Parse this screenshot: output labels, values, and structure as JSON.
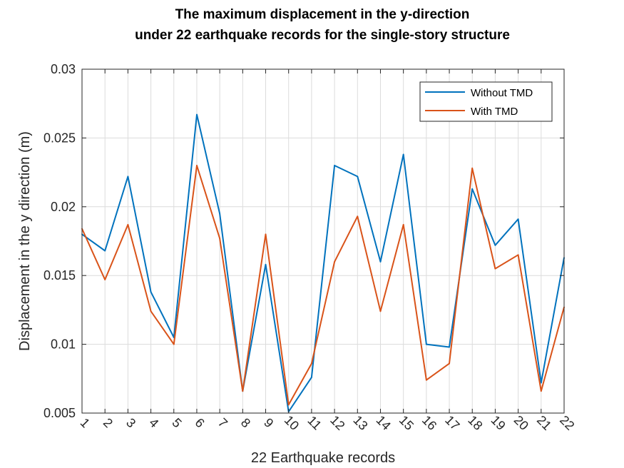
{
  "chart_data": {
    "type": "line",
    "title": [
      "The maximum displacement in the y-direction",
      "under 22 earthquake records for the single-story structure"
    ],
    "xlabel": "22 Earthquake records",
    "ylabel": "Displacement in the y direction (m)",
    "x": [
      1,
      2,
      3,
      4,
      5,
      6,
      7,
      8,
      9,
      10,
      11,
      12,
      13,
      14,
      15,
      16,
      17,
      18,
      19,
      20,
      21,
      22
    ],
    "xlim": [
      1,
      22
    ],
    "ylim": [
      0.005,
      0.03
    ],
    "yticks": [
      "0.005",
      "0.01",
      "0.015",
      "0.02",
      "0.025",
      "0.03"
    ],
    "ytick_values": [
      0.005,
      0.01,
      0.015,
      0.02,
      0.025,
      0.03
    ],
    "xticks": [
      "1",
      "2",
      "3",
      "4",
      "5",
      "6",
      "7",
      "8",
      "9",
      "10",
      "11",
      "12",
      "13",
      "14",
      "15",
      "16",
      "17",
      "18",
      "19",
      "20",
      "21",
      "22"
    ],
    "grid": true,
    "legend_position": "top-right",
    "series": [
      {
        "name": "Without TMD",
        "color": "#0072BD",
        "values": [
          0.018,
          0.0168,
          0.0222,
          0.0138,
          0.0105,
          0.0267,
          0.0195,
          0.0066,
          0.0158,
          0.0051,
          0.0076,
          0.023,
          0.0222,
          0.016,
          0.0238,
          0.01,
          0.0098,
          0.0213,
          0.0172,
          0.0191,
          0.0072,
          0.0163
        ]
      },
      {
        "name": "With TMD",
        "color": "#D95319",
        "values": [
          0.0184,
          0.0147,
          0.0187,
          0.0124,
          0.01,
          0.023,
          0.0177,
          0.0066,
          0.018,
          0.0056,
          0.0086,
          0.016,
          0.0193,
          0.0124,
          0.0187,
          0.0074,
          0.0086,
          0.0228,
          0.0155,
          0.0165,
          0.0066,
          0.0127
        ]
      }
    ]
  }
}
